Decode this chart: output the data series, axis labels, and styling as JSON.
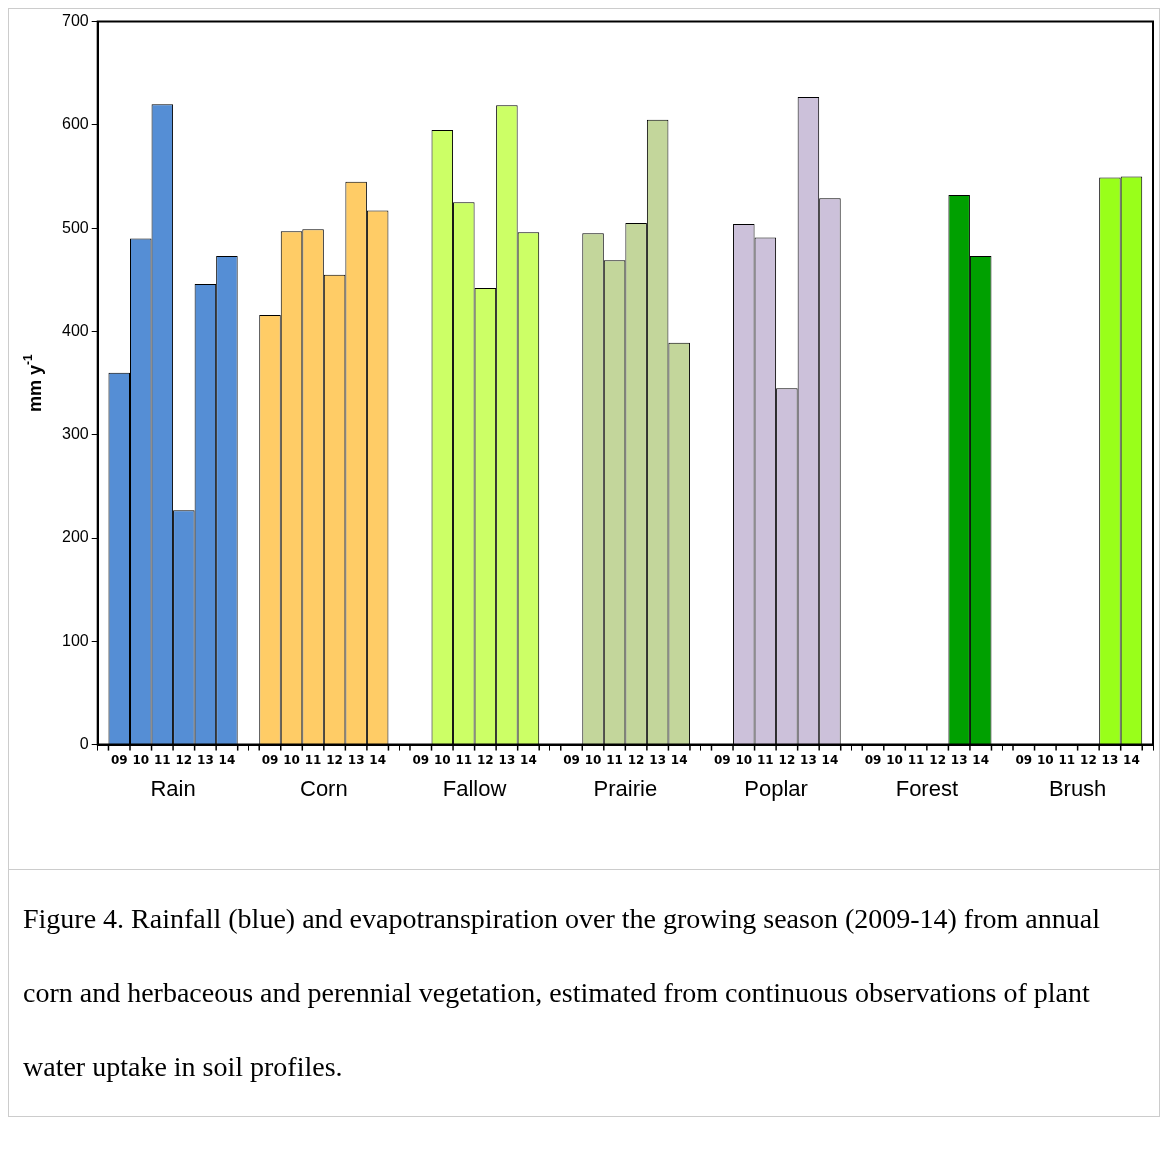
{
  "chart_data": {
    "type": "bar",
    "ylabel": "mm y$^{-1}$",
    "categories": [
      "Rain",
      "Corn",
      "Fallow",
      "Prairie",
      "Poplar",
      "Forest",
      "Brush"
    ],
    "series": [
      {
        "name": "09",
        "colors": [
          "#558ed5",
          "#ffcc66",
          "#ccff66",
          "#c3d69b",
          "#ccc1da",
          "#00a000",
          "#99ff1a"
        ],
        "values": [
          360,
          416,
          null,
          null,
          null,
          null,
          null
        ]
      },
      {
        "name": "10",
        "colors": [
          "#558ed5",
          "#ffcc66",
          "#ccff66",
          "#c3d69b",
          "#ccc1da",
          "#00a000",
          "#99ff1a"
        ],
        "values": [
          490,
          497,
          595,
          495,
          504,
          null,
          null
        ]
      },
      {
        "name": "11",
        "colors": [
          "#558ed5",
          "#ffcc66",
          "#ccff66",
          "#c3d69b",
          "#ccc1da",
          "#00a000",
          "#99ff1a"
        ],
        "values": [
          620,
          499,
          525,
          469,
          491,
          null,
          null
        ]
      },
      {
        "name": "12",
        "colors": [
          "#558ed5",
          "#ffcc66",
          "#ccff66",
          "#c3d69b",
          "#ccc1da",
          "#00a000",
          "#99ff1a"
        ],
        "values": [
          227,
          455,
          442,
          505,
          345,
          null,
          null
        ]
      },
      {
        "name": "13",
        "colors": [
          "#558ed5",
          "#ffcc66",
          "#ccff66",
          "#c3d69b",
          "#ccc1da",
          "#00a000",
          "#99ff1a"
        ],
        "values": [
          446,
          545,
          619,
          605,
          627,
          532,
          549
        ]
      },
      {
        "name": "14",
        "colors": [
          "#558ed5",
          "#ffcc66",
          "#ccff66",
          "#c3d69b",
          "#ccc1da",
          "#00a000",
          "#99ff1a"
        ],
        "values": [
          473,
          517,
          496,
          389,
          529,
          473,
          550
        ]
      }
    ],
    "ylim": [
      0,
      700
    ],
    "yticks": [
      0,
      100,
      200,
      300,
      400,
      500,
      600,
      700
    ],
    "grid": false,
    "legend": false,
    "annotations": [
      "Figure 4. Rainfall (blue) and evapotranspiration over the growing season (2009-14) from annual corn and herbaceous and perennial vegetation, estimated from continuous observations of plant water uptake in soil profiles."
    ]
  }
}
